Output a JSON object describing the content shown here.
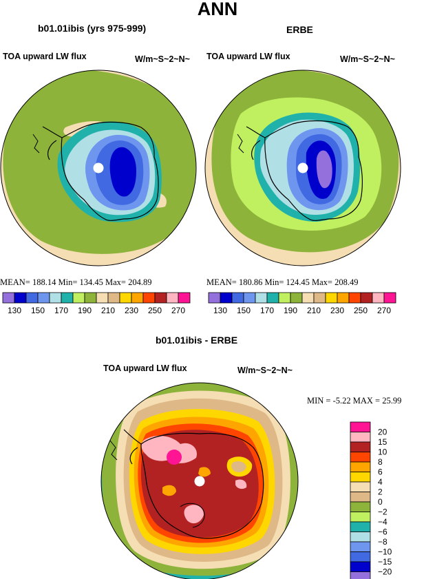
{
  "title": "ANN",
  "colors": {
    "c130": "#9370db",
    "c140": "#0000cd",
    "c150": "#4169e1",
    "c160": "#6f96ee",
    "c170": "#b0e0e6",
    "c180": "#20b2aa",
    "c190": "#c0f060",
    "c200": "#8db33a",
    "c210": "#f5deb3",
    "c220": "#deb887",
    "c230": "#ffd700",
    "c240": "#ffa500",
    "c250": "#ff4500",
    "c260": "#b22222",
    "c270": "#ffb6c1",
    "c280": "#ff1493"
  },
  "chart_data": [
    {
      "type": "heatmap",
      "title": "b01.01ibis (yrs 975-999)",
      "variable": "TOA upward LW flux",
      "units": "W/m~S~2~N~",
      "projection": "south-polar-stereographic",
      "stats": {
        "mean": "188.14",
        "min": "134.45",
        "max": "204.89"
      },
      "stats_text": "MEAN=  188.14   Min=  134.45   Max=  204.89",
      "colorbar": {
        "levels": [
          130,
          140,
          150,
          160,
          170,
          180,
          190,
          200,
          210,
          220,
          230,
          240,
          250,
          260,
          270
        ],
        "tick_labels": [
          "130",
          "150",
          "170",
          "190",
          "210",
          "230",
          "250",
          "270"
        ],
        "colors": [
          "#9370db",
          "#0000cd",
          "#4169e1",
          "#6f96ee",
          "#b0e0e6",
          "#20b2aa",
          "#c0f060",
          "#8db33a",
          "#f5deb3",
          "#deb887",
          "#ffd700",
          "#ffa500",
          "#ff4500",
          "#b22222",
          "#ffb6c1",
          "#ff1493"
        ]
      }
    },
    {
      "type": "heatmap",
      "title": "ERBE",
      "variable": "TOA upward LW flux",
      "units": "W/m~S~2~N~",
      "projection": "south-polar-stereographic",
      "stats": {
        "mean": "180.86",
        "min": "124.45",
        "max": "208.49"
      },
      "stats_text": "MEAN=  180.86   Min=  124.45   Max=  208.49",
      "colorbar": {
        "levels": [
          130,
          140,
          150,
          160,
          170,
          180,
          190,
          200,
          210,
          220,
          230,
          240,
          250,
          260,
          270
        ],
        "tick_labels": [
          "130",
          "150",
          "170",
          "190",
          "210",
          "230",
          "250",
          "270"
        ],
        "colors": [
          "#9370db",
          "#0000cd",
          "#4169e1",
          "#6f96ee",
          "#b0e0e6",
          "#20b2aa",
          "#c0f060",
          "#8db33a",
          "#f5deb3",
          "#deb887",
          "#ffd700",
          "#ffa500",
          "#ff4500",
          "#b22222",
          "#ffb6c1",
          "#ff1493"
        ]
      }
    },
    {
      "type": "heatmap",
      "title": "b01.01ibis - ERBE",
      "variable": "TOA upward LW flux",
      "units": "W/m~S~2~N~",
      "projection": "south-polar-stereographic",
      "stats": {
        "min": "-5.22",
        "max": "25.99"
      },
      "stats_text": "MIN =   -5.22  MAX =   25.99",
      "colorbar": {
        "levels": [
          20,
          15,
          10,
          8,
          6,
          4,
          2,
          0,
          -2,
          -4,
          -6,
          -8,
          -10,
          -15,
          -20
        ],
        "tick_labels": [
          "20",
          "15",
          "10",
          "8",
          "6",
          "4",
          "2",
          "0",
          "−2",
          "−4",
          "−6",
          "−8",
          "−10",
          "−15",
          "−20"
        ],
        "colors": [
          "#ff1493",
          "#ffb6c1",
          "#b22222",
          "#ff4500",
          "#ffa500",
          "#ffd700",
          "#f5deb3",
          "#deb887",
          "#8db33a",
          "#c0f060",
          "#20b2aa",
          "#b0e0e6",
          "#6f96ee",
          "#4169e1",
          "#0000cd",
          "#9370db"
        ]
      }
    }
  ]
}
